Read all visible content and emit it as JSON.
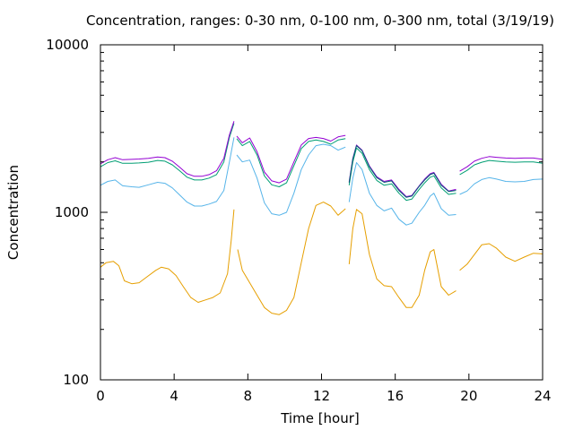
{
  "chart_data": {
    "type": "line",
    "title": "Concentration, ranges: 0-30 nm, 0-100 nm, 0-300 nm, total (3/19/19)",
    "xlabel": "Time [hour]",
    "ylabel": "Concentration",
    "xlim": [
      0,
      24
    ],
    "ylim": [
      100,
      10000
    ],
    "yscale": "log",
    "grid": false,
    "x_ticks": [
      0,
      4,
      8,
      12,
      16,
      20,
      24
    ],
    "y_ticks": [
      100,
      1000,
      10000
    ],
    "y_tick_labels": [
      "100",
      "1000",
      "10000"
    ],
    "series": [
      {
        "color": "#e69f00",
        "segments": [
          [
            [
              0,
              470
            ],
            [
              0.3,
              500
            ],
            [
              0.7,
              510
            ],
            [
              1.0,
              480
            ],
            [
              1.3,
              390
            ],
            [
              1.7,
              375
            ],
            [
              2.1,
              380
            ],
            [
              2.5,
              410
            ],
            [
              3.0,
              450
            ],
            [
              3.3,
              470
            ],
            [
              3.7,
              460
            ],
            [
              4.1,
              420
            ],
            [
              4.5,
              360
            ],
            [
              4.9,
              310
            ],
            [
              5.3,
              290
            ],
            [
              5.7,
              300
            ],
            [
              6.1,
              310
            ],
            [
              6.5,
              330
            ],
            [
              6.9,
              430
            ],
            [
              7.1,
              680
            ],
            [
              7.25,
              1040
            ]
          ],
          [
            [
              7.45,
              600
            ],
            [
              7.7,
              450
            ],
            [
              8.1,
              380
            ],
            [
              8.5,
              320
            ],
            [
              8.9,
              270
            ],
            [
              9.3,
              250
            ],
            [
              9.7,
              245
            ],
            [
              10.1,
              260
            ],
            [
              10.5,
              310
            ],
            [
              10.9,
              500
            ],
            [
              11.3,
              800
            ],
            [
              11.7,
              1100
            ],
            [
              12.1,
              1150
            ],
            [
              12.5,
              1090
            ],
            [
              12.9,
              960
            ],
            [
              13.3,
              1050
            ]
          ],
          [
            [
              13.5,
              490
            ],
            [
              13.7,
              800
            ],
            [
              13.9,
              1040
            ],
            [
              14.2,
              980
            ],
            [
              14.6,
              560
            ],
            [
              15.0,
              400
            ],
            [
              15.4,
              365
            ],
            [
              15.8,
              360
            ],
            [
              16.2,
              310
            ],
            [
              16.6,
              270
            ],
            [
              16.9,
              270
            ],
            [
              17.3,
              320
            ],
            [
              17.6,
              450
            ],
            [
              17.9,
              580
            ],
            [
              18.1,
              600
            ],
            [
              18.5,
              360
            ],
            [
              18.9,
              320
            ],
            [
              19.3,
              340
            ]
          ],
          [
            [
              19.5,
              450
            ],
            [
              19.9,
              490
            ],
            [
              20.3,
              560
            ],
            [
              20.7,
              640
            ],
            [
              21.1,
              650
            ],
            [
              21.5,
              610
            ],
            [
              22.0,
              540
            ],
            [
              22.5,
              510
            ],
            [
              23.0,
              540
            ],
            [
              23.5,
              570
            ],
            [
              24.0,
              565
            ]
          ]
        ]
      },
      {
        "color": "#56b4e9",
        "segments": [
          [
            [
              0,
              1450
            ],
            [
              0.4,
              1530
            ],
            [
              0.8,
              1560
            ],
            [
              1.2,
              1440
            ],
            [
              1.7,
              1420
            ],
            [
              2.1,
              1410
            ],
            [
              2.6,
              1460
            ],
            [
              3.1,
              1510
            ],
            [
              3.5,
              1490
            ],
            [
              3.9,
              1400
            ],
            [
              4.3,
              1270
            ],
            [
              4.7,
              1150
            ],
            [
              5.1,
              1090
            ],
            [
              5.5,
              1090
            ],
            [
              5.9,
              1120
            ],
            [
              6.3,
              1160
            ],
            [
              6.7,
              1350
            ],
            [
              7.0,
              2000
            ],
            [
              7.25,
              2800
            ]
          ],
          [
            [
              7.4,
              2200
            ],
            [
              7.7,
              2000
            ],
            [
              8.1,
              2050
            ],
            [
              8.5,
              1600
            ],
            [
              8.9,
              1140
            ],
            [
              9.3,
              980
            ],
            [
              9.7,
              960
            ],
            [
              10.1,
              1000
            ],
            [
              10.5,
              1300
            ],
            [
              10.9,
              1800
            ],
            [
              11.3,
              2200
            ],
            [
              11.7,
              2500
            ],
            [
              12.1,
              2550
            ],
            [
              12.5,
              2500
            ],
            [
              12.9,
              2350
            ],
            [
              13.3,
              2450
            ]
          ],
          [
            [
              13.5,
              1150
            ],
            [
              13.7,
              1600
            ],
            [
              13.9,
              1980
            ],
            [
              14.2,
              1800
            ],
            [
              14.6,
              1300
            ],
            [
              15.0,
              1100
            ],
            [
              15.4,
              1020
            ],
            [
              15.8,
              1060
            ],
            [
              16.2,
              910
            ],
            [
              16.6,
              840
            ],
            [
              16.9,
              860
            ],
            [
              17.3,
              1000
            ],
            [
              17.6,
              1100
            ],
            [
              17.9,
              1250
            ],
            [
              18.1,
              1300
            ],
            [
              18.5,
              1050
            ],
            [
              18.9,
              960
            ],
            [
              19.3,
              970
            ]
          ],
          [
            [
              19.5,
              1280
            ],
            [
              19.9,
              1340
            ],
            [
              20.3,
              1480
            ],
            [
              20.7,
              1570
            ],
            [
              21.1,
              1610
            ],
            [
              21.5,
              1580
            ],
            [
              22.0,
              1530
            ],
            [
              22.5,
              1520
            ],
            [
              23.0,
              1530
            ],
            [
              23.5,
              1570
            ],
            [
              24.0,
              1580
            ]
          ]
        ]
      },
      {
        "color": "#009e73",
        "segments": [
          [
            [
              0,
              1870
            ],
            [
              0.4,
              1980
            ],
            [
              0.8,
              2030
            ],
            [
              1.2,
              1960
            ],
            [
              1.7,
              1960
            ],
            [
              2.1,
              1970
            ],
            [
              2.6,
              1990
            ],
            [
              3.1,
              2040
            ],
            [
              3.5,
              2020
            ],
            [
              3.9,
              1920
            ],
            [
              4.3,
              1770
            ],
            [
              4.7,
              1620
            ],
            [
              5.1,
              1560
            ],
            [
              5.5,
              1560
            ],
            [
              5.9,
              1600
            ],
            [
              6.3,
              1680
            ],
            [
              6.7,
              2000
            ],
            [
              7.0,
              2800
            ],
            [
              7.25,
              3400
            ]
          ],
          [
            [
              7.4,
              2750
            ],
            [
              7.7,
              2500
            ],
            [
              8.1,
              2650
            ],
            [
              8.5,
              2200
            ],
            [
              8.9,
              1650
            ],
            [
              9.3,
              1460
            ],
            [
              9.7,
              1420
            ],
            [
              10.1,
              1500
            ],
            [
              10.5,
              1900
            ],
            [
              10.9,
              2400
            ],
            [
              11.3,
              2650
            ],
            [
              11.7,
              2700
            ],
            [
              12.1,
              2650
            ],
            [
              12.5,
              2550
            ],
            [
              12.9,
              2700
            ],
            [
              13.3,
              2750
            ]
          ],
          [
            [
              13.5,
              1450
            ],
            [
              13.7,
              2000
            ],
            [
              13.9,
              2420
            ],
            [
              14.2,
              2250
            ],
            [
              14.6,
              1800
            ],
            [
              15.0,
              1550
            ],
            [
              15.4,
              1450
            ],
            [
              15.8,
              1480
            ],
            [
              16.2,
              1300
            ],
            [
              16.6,
              1180
            ],
            [
              16.9,
              1200
            ],
            [
              17.3,
              1370
            ],
            [
              17.6,
              1500
            ],
            [
              17.9,
              1620
            ],
            [
              18.1,
              1650
            ],
            [
              18.5,
              1400
            ],
            [
              18.9,
              1280
            ],
            [
              19.3,
              1300
            ]
          ],
          [
            [
              19.5,
              1680
            ],
            [
              19.9,
              1780
            ],
            [
              20.3,
              1920
            ],
            [
              20.7,
              1990
            ],
            [
              21.1,
              2040
            ],
            [
              21.5,
              2020
            ],
            [
              22.0,
              2000
            ],
            [
              22.5,
              1990
            ],
            [
              23.0,
              2000
            ],
            [
              23.5,
              2000
            ],
            [
              24.0,
              1960
            ]
          ]
        ]
      },
      {
        "color": "#9400d3",
        "segments": [
          [
            [
              0,
              1950
            ],
            [
              0.4,
              2060
            ],
            [
              0.8,
              2120
            ],
            [
              1.2,
              2060
            ],
            [
              1.7,
              2070
            ],
            [
              2.1,
              2080
            ],
            [
              2.6,
              2100
            ],
            [
              3.1,
              2140
            ],
            [
              3.5,
              2120
            ],
            [
              3.9,
              2020
            ],
            [
              4.3,
              1860
            ],
            [
              4.7,
              1700
            ],
            [
              5.1,
              1640
            ],
            [
              5.5,
              1640
            ],
            [
              5.9,
              1680
            ],
            [
              6.3,
              1770
            ],
            [
              6.7,
              2100
            ],
            [
              7.0,
              2900
            ],
            [
              7.25,
              3500
            ]
          ],
          [
            [
              7.4,
              2850
            ],
            [
              7.7,
              2600
            ],
            [
              8.1,
              2780
            ],
            [
              8.5,
              2300
            ],
            [
              8.9,
              1740
            ],
            [
              9.3,
              1540
            ],
            [
              9.7,
              1500
            ],
            [
              10.1,
              1580
            ],
            [
              10.5,
              2000
            ],
            [
              10.9,
              2520
            ],
            [
              11.3,
              2760
            ],
            [
              11.7,
              2800
            ],
            [
              12.1,
              2760
            ],
            [
              12.5,
              2660
            ],
            [
              12.9,
              2820
            ],
            [
              13.3,
              2880
            ]
          ],
          [
            [
              13.5,
              1520
            ],
            [
              13.7,
              2100
            ],
            [
              13.9,
              2520
            ],
            [
              14.2,
              2350
            ],
            [
              14.6,
              1890
            ],
            [
              15.0,
              1630
            ],
            [
              15.4,
              1530
            ],
            [
              15.8,
              1560
            ],
            [
              16.2,
              1370
            ],
            [
              16.6,
              1240
            ],
            [
              16.9,
              1260
            ],
            [
              17.3,
              1440
            ],
            [
              17.6,
              1580
            ],
            [
              17.9,
              1700
            ],
            [
              18.1,
              1730
            ],
            [
              18.5,
              1470
            ],
            [
              18.9,
              1340
            ],
            [
              19.3,
              1370
            ]
          ],
          [
            [
              19.5,
              1760
            ],
            [
              19.9,
              1870
            ],
            [
              20.3,
              2020
            ],
            [
              20.7,
              2100
            ],
            [
              21.1,
              2150
            ],
            [
              21.5,
              2130
            ],
            [
              22.0,
              2110
            ],
            [
              22.5,
              2100
            ],
            [
              23.0,
              2110
            ],
            [
              23.5,
              2110
            ],
            [
              24.0,
              2070
            ]
          ]
        ]
      },
      {
        "color": "#005f73",
        "segments": [
          [
            [
              13.5,
              1500
            ],
            [
              13.7,
              2080
            ],
            [
              13.9,
              2500
            ],
            [
              14.2,
              2330
            ],
            [
              14.6,
              1870
            ],
            [
              15.0,
              1610
            ],
            [
              15.4,
              1510
            ],
            [
              15.8,
              1540
            ],
            [
              16.2,
              1350
            ],
            [
              16.6,
              1230
            ],
            [
              16.9,
              1250
            ],
            [
              17.3,
              1430
            ],
            [
              17.6,
              1560
            ],
            [
              17.9,
              1680
            ],
            [
              18.1,
              1710
            ],
            [
              18.5,
              1450
            ],
            [
              18.9,
              1330
            ],
            [
              19.3,
              1350
            ]
          ]
        ]
      }
    ]
  }
}
